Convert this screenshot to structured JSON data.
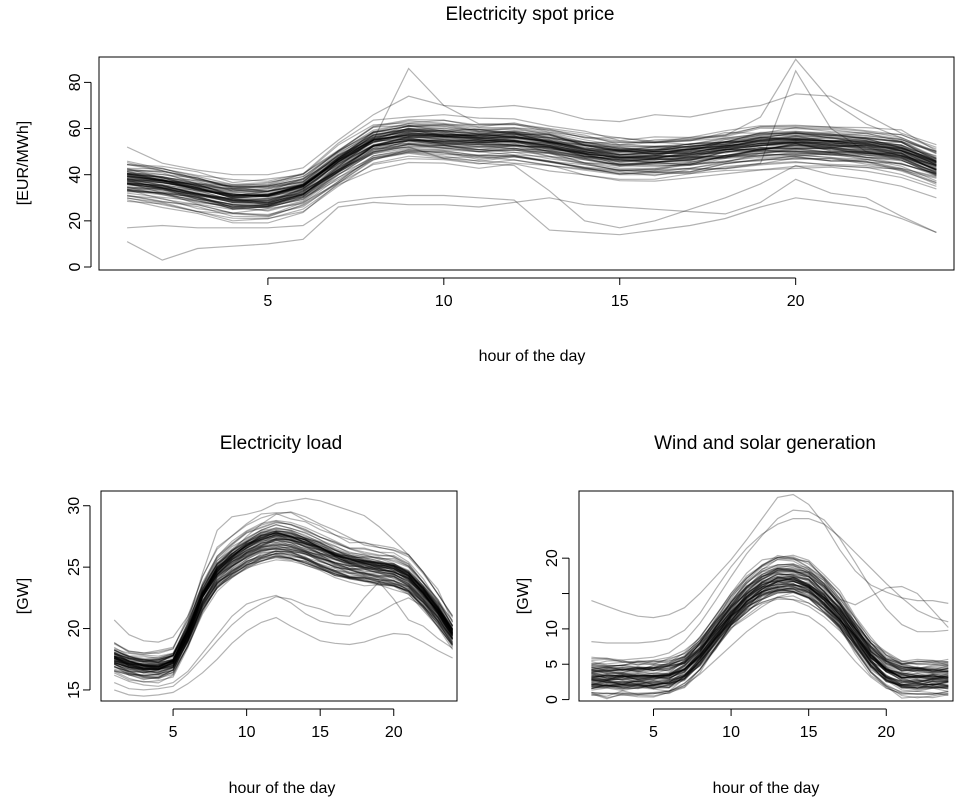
{
  "colors": {
    "background": "#ffffff",
    "axes": "#000000",
    "curve": "#000000",
    "curve_opacity": 0.3
  },
  "chart_data": [
    {
      "id": "price",
      "type": "line",
      "title": "Electricity spot price",
      "xlabel": "hour of the day",
      "ylabel": "[EUR/MWh]",
      "xlim": [
        0.2,
        24.5
      ],
      "ylim": [
        -1.3,
        91
      ],
      "x_ticks": [
        5,
        10,
        15,
        20
      ],
      "y_ticks": [
        0,
        20,
        40,
        60,
        80
      ],
      "grid": false,
      "legend": "none",
      "x": [
        1,
        2,
        3,
        4,
        5,
        6,
        7,
        8,
        9,
        10,
        11,
        12,
        13,
        14,
        15,
        16,
        17,
        18,
        19,
        20,
        21,
        22,
        23,
        24
      ],
      "profile_mean": [
        38,
        36,
        33,
        30,
        30,
        34,
        45,
        54,
        57,
        56,
        55,
        55,
        53,
        50,
        48,
        48,
        49,
        51,
        53,
        54,
        53,
        52,
        50,
        44
      ],
      "series_count": 80,
      "spread": 7,
      "series": [
        {
          "values": [
            11,
            3,
            8,
            9,
            10,
            12,
            26,
            28,
            27,
            27,
            26,
            28,
            30,
            27,
            26,
            25,
            24,
            23,
            28,
            38,
            32,
            30,
            22,
            15
          ]
        },
        {
          "values": [
            17,
            18,
            17,
            17,
            17,
            18,
            28,
            30,
            31,
            31,
            30,
            29,
            16,
            15,
            14,
            16,
            18,
            21,
            26,
            30,
            28,
            26,
            21,
            15
          ]
        },
        {
          "values": [
            40,
            39,
            35,
            33,
            34,
            37,
            48,
            55,
            86,
            70,
            62,
            62,
            60,
            58,
            56,
            54,
            55,
            57,
            65,
            90,
            72,
            62,
            56,
            50
          ]
        },
        {
          "values": [
            52,
            45,
            42,
            40,
            40,
            43,
            55,
            66,
            74,
            70,
            69,
            70,
            68,
            64,
            63,
            66,
            65,
            68,
            70,
            75,
            74,
            66,
            58,
            53
          ]
        },
        {
          "values": [
            30,
            27,
            24,
            20,
            21,
            24,
            35,
            45,
            48,
            47,
            46,
            45,
            44,
            42,
            40,
            40,
            41,
            43,
            45,
            85,
            60,
            50,
            47,
            40
          ]
        },
        {
          "values": [
            36,
            34,
            31,
            28,
            29,
            33,
            42,
            50,
            52,
            47,
            45,
            44,
            33,
            20,
            17,
            20,
            25,
            30,
            36,
            44,
            40,
            38,
            35,
            30
          ]
        }
      ]
    },
    {
      "id": "load",
      "type": "line",
      "title": "Electricity load",
      "xlabel": "hour of the day",
      "ylabel": "[GW]",
      "xlim": [
        0.1,
        24.3
      ],
      "ylim": [
        14.1,
        31.2
      ],
      "x_ticks": [
        5,
        10,
        15,
        20
      ],
      "y_ticks": [
        15,
        20,
        25,
        30
      ],
      "grid": false,
      "legend": "none",
      "x": [
        1,
        2,
        3,
        4,
        5,
        6,
        7,
        8,
        9,
        10,
        11,
        12,
        13,
        14,
        15,
        16,
        17,
        18,
        19,
        20,
        21,
        22,
        23,
        24
      ],
      "profile_mean": [
        17.5,
        17.0,
        16.8,
        16.8,
        17.2,
        19.5,
        22.5,
        24.5,
        25.5,
        26.3,
        26.9,
        27.2,
        27.0,
        26.6,
        26.1,
        25.6,
        25.2,
        25.0,
        24.8,
        24.6,
        24.0,
        22.8,
        21.3,
        19.5
      ],
      "series_count": 80,
      "spread": 0.9,
      "series": [
        {
          "values": [
            15.0,
            14.6,
            14.5,
            14.6,
            14.8,
            15.5,
            16.4,
            17.5,
            18.8,
            19.8,
            20.5,
            20.9,
            20.2,
            19.6,
            19.0,
            18.8,
            18.7,
            18.9,
            19.3,
            19.6,
            19.5,
            18.9,
            18.2,
            17.6
          ]
        },
        {
          "values": [
            16.2,
            15.7,
            15.4,
            15.3,
            15.6,
            16.5,
            18.0,
            19.5,
            21.0,
            22.0,
            22.4,
            22.7,
            22.1,
            21.2,
            20.6,
            20.4,
            20.3,
            20.8,
            21.3,
            22.0,
            22.5,
            21.8,
            20.1,
            18.3
          ]
        },
        {
          "values": [
            18.0,
            17.5,
            17.3,
            17.3,
            17.8,
            20.5,
            24.5,
            28.0,
            29.1,
            29.3,
            29.6,
            30.2,
            30.4,
            30.6,
            30.4,
            30.0,
            29.6,
            29.2,
            28.3,
            27.2,
            26.0,
            24.6,
            23.2,
            20.5
          ]
        },
        {
          "values": [
            20.7,
            19.5,
            19.0,
            18.9,
            19.3,
            21.0,
            23.5,
            25.2,
            26.3,
            27.5,
            28.5,
            29.3,
            29.5,
            29.1,
            28.5,
            28.0,
            27.4,
            26.8,
            26.6,
            26.4,
            26.0,
            24.6,
            22.8,
            21.0
          ]
        },
        {
          "values": [
            15.6,
            15.1,
            15.0,
            15.1,
            15.3,
            16.3,
            17.6,
            19.0,
            20.3,
            21.3,
            22.0,
            22.6,
            22.4,
            21.9,
            21.6,
            21.1,
            21.0,
            22.5,
            23.8,
            22.4,
            20.7,
            20.2,
            19.2,
            18.4
          ]
        }
      ]
    },
    {
      "id": "wind_solar",
      "type": "line",
      "title": "Wind and solar generation",
      "xlabel": "hour of the day",
      "ylabel": "[GW]",
      "xlim": [
        0.2,
        24.3
      ],
      "ylim": [
        -0.2,
        29.5
      ],
      "x_ticks": [
        5,
        10,
        15,
        20
      ],
      "y_ticks": [
        0,
        5,
        10,
        15,
        20
      ],
      "y_tick_labels": [
        "0",
        "5",
        "10",
        "",
        "20"
      ],
      "grid": false,
      "legend": "none",
      "x": [
        1,
        2,
        3,
        4,
        5,
        6,
        7,
        8,
        9,
        10,
        11,
        12,
        13,
        14,
        15,
        16,
        17,
        18,
        19,
        20,
        21,
        22,
        23,
        24
      ],
      "profile_mean": [
        3,
        3,
        3,
        3,
        3,
        3.2,
        4.2,
        6.3,
        9.2,
        12,
        14.4,
        16,
        16.9,
        17,
        16.2,
        14.4,
        12,
        9,
        6,
        4,
        3.1,
        3,
        3,
        3
      ],
      "series_count": 80,
      "spread": 2.2,
      "series": [
        {
          "values": [
            14,
            13.2,
            12.4,
            11.8,
            11.6,
            12,
            13,
            15,
            17.4,
            19.8,
            22.6,
            25.6,
            28.6,
            29,
            27.6,
            24.8,
            21.2,
            18.2,
            16.2,
            15.2,
            14.4,
            14,
            14,
            13.6
          ]
        },
        {
          "values": [
            8.2,
            8,
            8,
            8,
            8.2,
            8.6,
            9.8,
            12.2,
            15.6,
            18.8,
            21.4,
            23.4,
            24.8,
            25.6,
            25.6,
            24.8,
            23,
            20.8,
            18.6,
            16.4,
            14.4,
            12.6,
            11.6,
            11
          ]
        },
        {
          "values": [
            6,
            5.8,
            5.6,
            5.8,
            6,
            6.6,
            8.2,
            10.8,
            14,
            17.4,
            20.6,
            23.2,
            25.6,
            26.8,
            26.6,
            25.4,
            22.8,
            19.4,
            15.8,
            12.8,
            10.6,
            9.6,
            9.6,
            9.8
          ]
        },
        {
          "values": [
            2.2,
            2,
            1.8,
            1.8,
            2,
            2.4,
            3.8,
            6.6,
            10.2,
            13.8,
            16.8,
            18.8,
            19.8,
            19.6,
            18.4,
            16.4,
            14.2,
            13.4,
            14.6,
            15.8,
            16,
            15,
            12.6,
            10.2
          ]
        },
        {
          "values": [
            1,
            0.9,
            0.9,
            0.9,
            1,
            1.2,
            2,
            3.6,
            5.6,
            7.6,
            9.6,
            11.2,
            12.2,
            12.4,
            11.8,
            10.2,
            8,
            5.4,
            3.2,
            1.6,
            0.9,
            0.8,
            0.8,
            0.8
          ]
        }
      ]
    }
  ]
}
